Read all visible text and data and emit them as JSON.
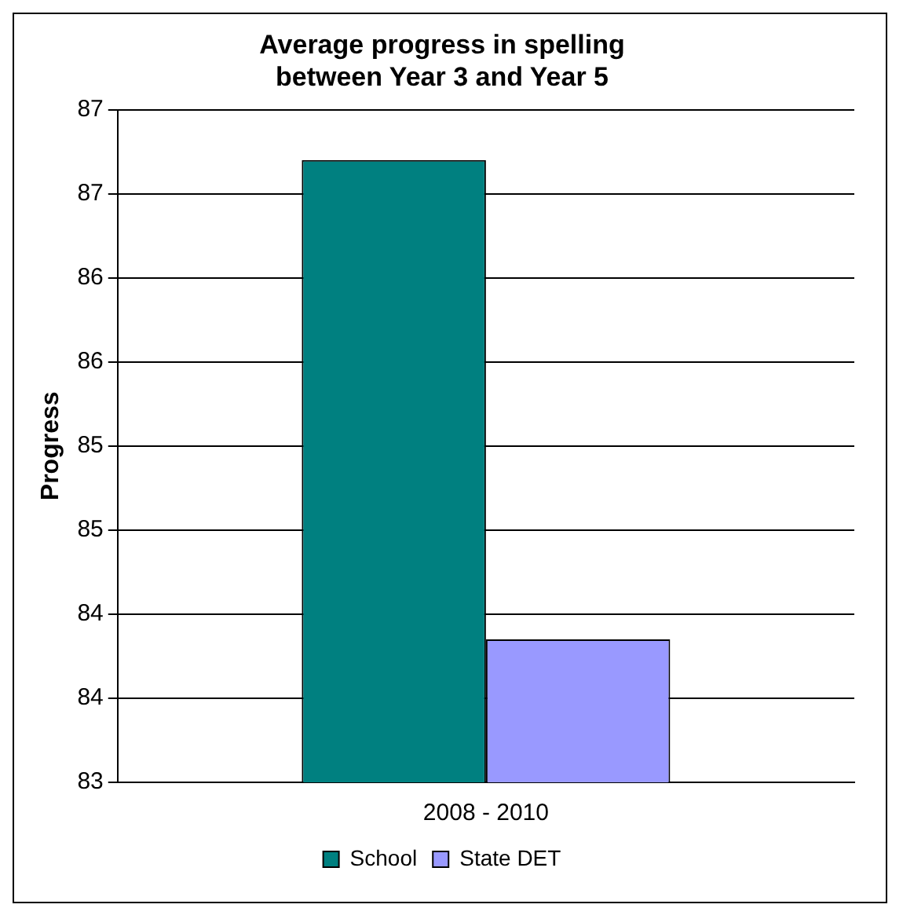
{
  "chart_data": {
    "type": "bar",
    "title": "Average progress in spelling between Year 3 and Year 5",
    "ylabel": "Progress",
    "categories": [
      "2008 - 2010"
    ],
    "series": [
      {
        "name": "School",
        "color": "#008080",
        "values": [
          86.7
        ]
      },
      {
        "name": "State DET",
        "color": "#9999ff",
        "values": [
          83.85
        ]
      }
    ],
    "ylim": [
      83,
      87
    ],
    "yticks": [
      83,
      {
        "value": 83.5,
        "label": "84"
      },
      84,
      {
        "value": 84.5,
        "label": "85"
      },
      85,
      {
        "value": 85.5,
        "label": "86"
      },
      86,
      {
        "value": 86.5,
        "label": "87"
      },
      87
    ],
    "grid": "y",
    "legend": "bottom"
  }
}
